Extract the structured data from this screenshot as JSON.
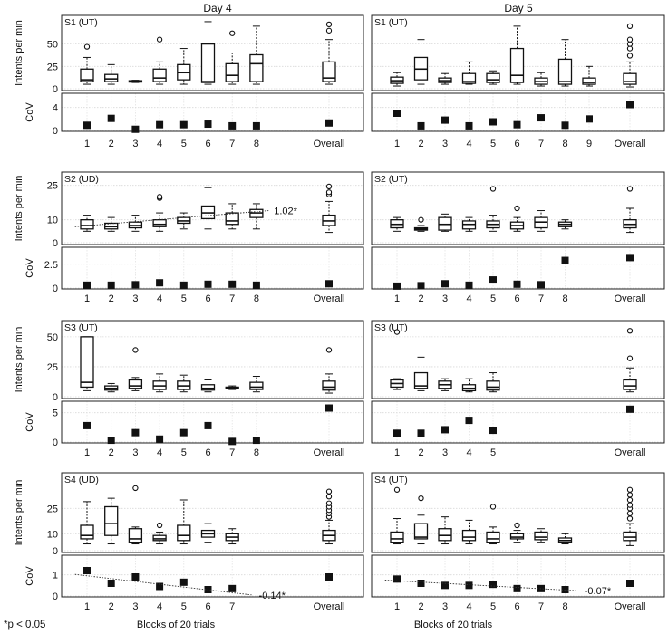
{
  "figure": {
    "col_titles": [
      "Day 4",
      "Day 5"
    ],
    "row_ylabels": {
      "intents": "Intents per min",
      "cov": "CoV"
    },
    "xlabel": "Blocks of 20 trials",
    "footnote": "*p < 0.05",
    "overall_label": "Overall"
  },
  "chart_data": [
    {
      "type": "box",
      "subject": "S1",
      "day": "Day 4",
      "label": "S1 (UT)",
      "ylim_box": [
        0,
        80
      ],
      "yticks_box": [
        0,
        25,
        50
      ],
      "categories": [
        "1",
        "2",
        "3",
        "4",
        "5",
        "6",
        "7",
        "8",
        "Overall"
      ],
      "boxes": [
        {
          "whislo": 5,
          "q1": 8,
          "med": 10,
          "q3": 22,
          "whishi": 35,
          "fliers": [
            47
          ]
        },
        {
          "whislo": 5,
          "q1": 8,
          "med": 11,
          "q3": 16,
          "whishi": 27,
          "fliers": []
        },
        {
          "whislo": 7,
          "q1": 7.5,
          "med": 8,
          "q3": 9,
          "whishi": 9.5,
          "fliers": []
        },
        {
          "whislo": 5,
          "q1": 8,
          "med": 12,
          "q3": 22,
          "whishi": 30,
          "fliers": [
            55
          ]
        },
        {
          "whislo": 5,
          "q1": 10,
          "med": 18,
          "q3": 27,
          "whishi": 45,
          "fliers": []
        },
        {
          "whislo": 5,
          "q1": 7,
          "med": 8,
          "q3": 50,
          "whishi": 75,
          "fliers": []
        },
        {
          "whislo": 5,
          "q1": 8,
          "med": 15,
          "q3": 28,
          "whishi": 40,
          "fliers": [
            62
          ]
        },
        {
          "whislo": 5,
          "q1": 8,
          "med": 28,
          "q3": 38,
          "whishi": 70,
          "fliers": []
        },
        {
          "whislo": 5,
          "q1": 8,
          "med": 12,
          "q3": 30,
          "whishi": 55,
          "fliers": [
            65,
            72
          ]
        }
      ],
      "ylim_cov": [
        0,
        6
      ],
      "yticks_cov": [
        0,
        4
      ],
      "cov": [
        0.9,
        2.1,
        0.2,
        1.0,
        1.0,
        1.1,
        0.8,
        0.8,
        1.3
      ]
    },
    {
      "type": "box",
      "subject": "S1",
      "day": "Day 5",
      "label": "S1 (UT)",
      "ylim_box": [
        0,
        80
      ],
      "yticks_box": [
        0,
        25,
        50
      ],
      "categories": [
        "1",
        "2",
        "3",
        "4",
        "5",
        "6",
        "7",
        "8",
        "9",
        "Overall"
      ],
      "boxes": [
        {
          "whislo": 3,
          "q1": 6,
          "med": 9,
          "q3": 13,
          "whishi": 18,
          "fliers": []
        },
        {
          "whislo": 5,
          "q1": 10,
          "med": 22,
          "q3": 35,
          "whishi": 55,
          "fliers": []
        },
        {
          "whislo": 5,
          "q1": 7,
          "med": 9,
          "q3": 12,
          "whishi": 17,
          "fliers": []
        },
        {
          "whislo": 5,
          "q1": 6,
          "med": 8,
          "q3": 17,
          "whishi": 30,
          "fliers": []
        },
        {
          "whislo": 5,
          "q1": 7,
          "med": 10,
          "q3": 17,
          "whishi": 20,
          "fliers": []
        },
        {
          "whislo": 5,
          "q1": 7,
          "med": 15,
          "q3": 45,
          "whishi": 70,
          "fliers": []
        },
        {
          "whislo": 3,
          "q1": 5,
          "med": 8,
          "q3": 12,
          "whishi": 18,
          "fliers": []
        },
        {
          "whislo": 3,
          "q1": 5,
          "med": 8,
          "q3": 33,
          "whishi": 55,
          "fliers": []
        },
        {
          "whislo": 3,
          "q1": 5,
          "med": 7,
          "q3": 12,
          "whishi": 25,
          "fliers": []
        },
        {
          "whislo": 2,
          "q1": 5,
          "med": 8,
          "q3": 17,
          "whishi": 30,
          "fliers": [
            37,
            45,
            50,
            55,
            70
          ]
        }
      ],
      "ylim_cov": [
        0,
        6
      ],
      "yticks_cov": [
        0,
        4
      ],
      "cov": [
        3.0,
        0.8,
        1.8,
        0.8,
        1.5,
        1.0,
        2.2,
        0.9,
        2.0,
        4.5
      ]
    },
    {
      "type": "box",
      "subject": "S2",
      "day": "Day 4",
      "label": "S2 (UD)",
      "ylim_box": [
        0,
        30
      ],
      "yticks_box": [
        0,
        10,
        25
      ],
      "categories": [
        "1",
        "2",
        "3",
        "4",
        "5",
        "6",
        "7",
        "8",
        "Overall"
      ],
      "boxes": [
        {
          "whislo": 5,
          "q1": 6,
          "med": 7.5,
          "q3": 10,
          "whishi": 12,
          "fliers": []
        },
        {
          "whislo": 5,
          "q1": 6,
          "med": 7,
          "q3": 8.5,
          "whishi": 11,
          "fliers": []
        },
        {
          "whislo": 5,
          "q1": 6.5,
          "med": 7.5,
          "q3": 9,
          "whishi": 12,
          "fliers": []
        },
        {
          "whislo": 5,
          "q1": 7,
          "med": 8,
          "q3": 10,
          "whishi": 13,
          "fliers": [
            19.5,
            20
          ]
        },
        {
          "whislo": 6,
          "q1": 8.5,
          "med": 9.5,
          "q3": 11,
          "whishi": 13,
          "fliers": []
        },
        {
          "whislo": 6,
          "q1": 10.5,
          "med": 13,
          "q3": 16,
          "whishi": 24,
          "fliers": []
        },
        {
          "whislo": 6,
          "q1": 8,
          "med": 9.5,
          "q3": 13,
          "whishi": 17,
          "fliers": []
        },
        {
          "whislo": 6,
          "q1": 11,
          "med": 13,
          "q3": 14.5,
          "whishi": 17,
          "fliers": []
        },
        {
          "whislo": 4.5,
          "q1": 7.5,
          "med": 9.5,
          "q3": 12,
          "whishi": 18,
          "fliers": [
            21,
            22,
            24.5
          ]
        }
      ],
      "trend": {
        "x": [
          0.5,
          8.5
        ],
        "y": [
          7.0,
          14.0
        ],
        "label": "1.02*"
      },
      "ylim_cov": [
        0,
        4
      ],
      "yticks_cov": [
        0,
        2.5
      ],
      "cov": [
        0.3,
        0.3,
        0.35,
        0.55,
        0.3,
        0.4,
        0.4,
        0.3,
        0.45
      ]
    },
    {
      "type": "box",
      "subject": "S2",
      "day": "Day 5",
      "label": "S2 (UT)",
      "ylim_box": [
        0,
        30
      ],
      "yticks_box": [
        0,
        10,
        25
      ],
      "categories": [
        "1",
        "2",
        "3",
        "4",
        "5",
        "6",
        "7",
        "8",
        "Overall"
      ],
      "boxes": [
        {
          "whislo": 5,
          "q1": 6.5,
          "med": 8,
          "q3": 10,
          "whishi": 11,
          "fliers": []
        },
        {
          "whislo": 5,
          "q1": 5.5,
          "med": 6,
          "q3": 6.5,
          "whishi": 7.5,
          "fliers": [
            10
          ]
        },
        {
          "whislo": 5,
          "q1": 5.5,
          "med": 8,
          "q3": 11,
          "whishi": 12.5,
          "fliers": []
        },
        {
          "whislo": 5,
          "q1": 6,
          "med": 8,
          "q3": 9.5,
          "whishi": 11,
          "fliers": []
        },
        {
          "whislo": 5,
          "q1": 6.5,
          "med": 8,
          "q3": 9.5,
          "whishi": 12,
          "fliers": [
            23.5
          ]
        },
        {
          "whislo": 5,
          "q1": 6,
          "med": 7.5,
          "q3": 9,
          "whishi": 11,
          "fliers": [
            15
          ]
        },
        {
          "whislo": 5,
          "q1": 6.5,
          "med": 9,
          "q3": 11,
          "whishi": 14,
          "fliers": []
        },
        {
          "whislo": 6,
          "q1": 7,
          "med": 8,
          "q3": 9,
          "whishi": 10,
          "fliers": []
        },
        {
          "whislo": 4.5,
          "q1": 6.5,
          "med": 8,
          "q3": 10,
          "whishi": 15,
          "fliers": [
            23.5
          ]
        }
      ],
      "ylim_cov": [
        0,
        4
      ],
      "yticks_cov": [
        0,
        2.5
      ],
      "cov": [
        0.2,
        0.25,
        0.45,
        0.3,
        0.85,
        0.4,
        0.35,
        2.9,
        3.2
      ]
    },
    {
      "type": "box",
      "subject": "S3",
      "day": "Day 4",
      "label": "S3 (UT)",
      "ylim_box": [
        0,
        62
      ],
      "yticks_box": [
        0,
        25,
        50
      ],
      "categories": [
        "1",
        "2",
        "3",
        "4",
        "5",
        "6",
        "7",
        "8",
        "Overall"
      ],
      "boxes": [
        {
          "whislo": 5,
          "q1": 8,
          "med": 12,
          "q3": 50,
          "whishi": 50,
          "fliers": []
        },
        {
          "whislo": 4,
          "q1": 5.5,
          "med": 7,
          "q3": 9,
          "whishi": 11,
          "fliers": []
        },
        {
          "whislo": 5,
          "q1": 7,
          "med": 9,
          "q3": 14,
          "whishi": 16,
          "fliers": [
            39
          ]
        },
        {
          "whislo": 4,
          "q1": 6,
          "med": 9,
          "q3": 13,
          "whishi": 19,
          "fliers": []
        },
        {
          "whislo": 4,
          "q1": 6,
          "med": 9,
          "q3": 13,
          "whishi": 18,
          "fliers": []
        },
        {
          "whislo": 4,
          "q1": 5.5,
          "med": 7,
          "q3": 10,
          "whishi": 14,
          "fliers": []
        },
        {
          "whislo": 6,
          "q1": 7,
          "med": 7.5,
          "q3": 8,
          "whishi": 9,
          "fliers": []
        },
        {
          "whislo": 4,
          "q1": 6,
          "med": 8,
          "q3": 12,
          "whishi": 17,
          "fliers": []
        },
        {
          "whislo": 3,
          "q1": 5.5,
          "med": 8,
          "q3": 13,
          "whishi": 19,
          "fliers": [
            39
          ]
        }
      ],
      "ylim_cov": [
        0,
        6.5
      ],
      "yticks_cov": [
        0,
        5
      ],
      "cov": [
        2.8,
        0.3,
        1.6,
        0.5,
        1.6,
        2.8,
        0.1,
        0.3,
        5.8
      ]
    },
    {
      "type": "box",
      "subject": "S3",
      "day": "Day 5",
      "label": "S3 (UT)",
      "ylim_box": [
        0,
        62
      ],
      "yticks_box": [
        0,
        25,
        50
      ],
      "categories": [
        "1",
        "2",
        "3",
        "4",
        "5",
        "Overall"
      ],
      "boxes": [
        {
          "whislo": 6,
          "q1": 8,
          "med": 11,
          "q3": 14,
          "whishi": 15,
          "fliers": [
            54
          ]
        },
        {
          "whislo": 5,
          "q1": 7,
          "med": 9,
          "q3": 20,
          "whishi": 33,
          "fliers": []
        },
        {
          "whislo": 5,
          "q1": 7,
          "med": 10,
          "q3": 13,
          "whishi": 15,
          "fliers": []
        },
        {
          "whislo": 4,
          "q1": 5,
          "med": 7,
          "q3": 10,
          "whishi": 15,
          "fliers": []
        },
        {
          "whislo": 4,
          "q1": 5.5,
          "med": 8,
          "q3": 13,
          "whishi": 20,
          "fliers": []
        },
        {
          "whislo": 4,
          "q1": 6,
          "med": 9,
          "q3": 14,
          "whishi": 24,
          "fliers": [
            32,
            55
          ]
        }
      ],
      "ylim_cov": [
        0,
        6.5
      ],
      "yticks_cov": [
        0,
        5
      ],
      "cov": [
        1.5,
        1.5,
        2.1,
        3.7,
        2.0,
        5.6
      ]
    },
    {
      "type": "box",
      "subject": "S4",
      "day": "Day 4",
      "label": "S4 (UD)",
      "ylim_box": [
        0,
        45
      ],
      "yticks_box": [
        0,
        10,
        25
      ],
      "categories": [
        "1",
        "2",
        "3",
        "4",
        "5",
        "6",
        "7",
        "Overall"
      ],
      "boxes": [
        {
          "whislo": 4,
          "q1": 7,
          "med": 9,
          "q3": 15,
          "whishi": 29,
          "fliers": []
        },
        {
          "whislo": 4,
          "q1": 9,
          "med": 16,
          "q3": 26,
          "whishi": 31,
          "fliers": []
        },
        {
          "whislo": 4,
          "q1": 5,
          "med": 7,
          "q3": 13,
          "whishi": 14,
          "fliers": [
            37
          ]
        },
        {
          "whislo": 4,
          "q1": 6,
          "med": 7,
          "q3": 9,
          "whishi": 11,
          "fliers": [
            15
          ]
        },
        {
          "whislo": 4,
          "q1": 6,
          "med": 9,
          "q3": 15,
          "whishi": 30,
          "fliers": []
        },
        {
          "whislo": 5,
          "q1": 8,
          "med": 10,
          "q3": 12,
          "whishi": 16,
          "fliers": []
        },
        {
          "whislo": 4,
          "q1": 6,
          "med": 8,
          "q3": 10,
          "whishi": 13,
          "fliers": []
        }
      ],
      "overall": {
        "whislo": 4,
        "q1": 6,
        "med": 9,
        "q3": 12,
        "whishi": 18,
        "fliers": [
          20,
          22,
          24,
          26,
          28,
          32,
          35
        ]
      },
      "trend_cov": {
        "x": [
          0.5,
          7.8
        ],
        "y": [
          1.02,
          0.05
        ],
        "label": "-0.14*"
      },
      "ylim_cov": [
        0,
        1.8
      ],
      "yticks_cov": [
        0,
        1
      ],
      "cov": [
        1.2,
        0.6,
        0.9,
        0.45,
        0.65,
        0.3,
        0.35
      ],
      "cov_overall": 0.9
    },
    {
      "type": "box",
      "subject": "S4",
      "day": "Day 5",
      "label": "S4 (UT)",
      "ylim_box": [
        0,
        45
      ],
      "yticks_box": [
        0,
        10,
        25
      ],
      "categories": [
        "1",
        "2",
        "3",
        "4",
        "5",
        "6",
        "7",
        "8",
        "Overall"
      ],
      "boxes": [
        {
          "whislo": 4,
          "q1": 5,
          "med": 7,
          "q3": 11,
          "whishi": 19,
          "fliers": [
            36
          ]
        },
        {
          "whislo": 4,
          "q1": 7,
          "med": 8,
          "q3": 16,
          "whishi": 21,
          "fliers": [
            31
          ]
        },
        {
          "whislo": 4,
          "q1": 6,
          "med": 9,
          "q3": 13,
          "whishi": 20,
          "fliers": []
        },
        {
          "whislo": 4,
          "q1": 6,
          "med": 8,
          "q3": 12,
          "whishi": 18,
          "fliers": []
        },
        {
          "whislo": 4,
          "q1": 5,
          "med": 7,
          "q3": 11,
          "whishi": 14,
          "fliers": [
            26
          ]
        },
        {
          "whislo": 5,
          "q1": 7,
          "med": 8,
          "q3": 10,
          "whishi": 12,
          "fliers": [
            15
          ]
        },
        {
          "whislo": 5,
          "q1": 6.5,
          "med": 8,
          "q3": 11,
          "whishi": 13,
          "fliers": []
        },
        {
          "whislo": 4,
          "q1": 5,
          "med": 6,
          "q3": 7.5,
          "whishi": 10,
          "fliers": []
        },
        {
          "whislo": 3,
          "q1": 6,
          "med": 8,
          "q3": 11,
          "whishi": 16,
          "fliers": [
            19,
            22,
            25,
            27,
            30,
            33,
            36
          ]
        }
      ],
      "trend_cov": {
        "x": [
          0.5,
          8.5
        ],
        "y": [
          0.75,
          0.25
        ],
        "label": "-0.07*"
      },
      "ylim_cov": [
        0,
        1.8
      ],
      "yticks_cov": [
        0,
        1
      ],
      "cov": [
        0.8,
        0.6,
        0.5,
        0.5,
        0.55,
        0.35,
        0.35,
        0.3,
        0.6
      ]
    }
  ]
}
